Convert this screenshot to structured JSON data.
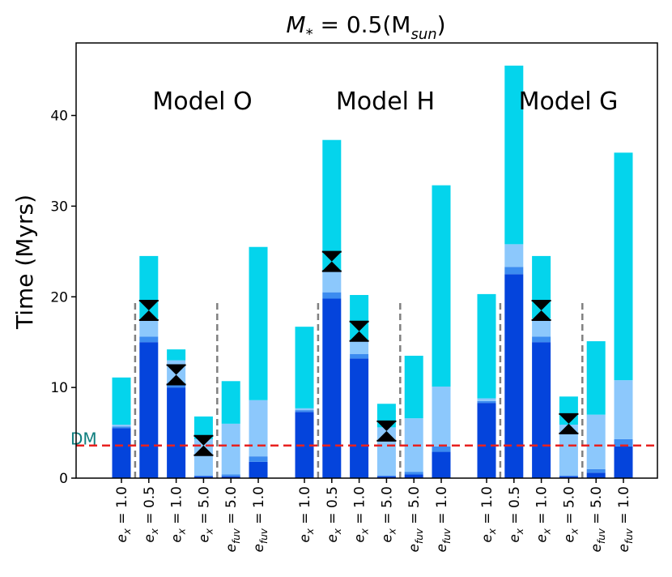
{
  "chart_data": {
    "type": "bar",
    "title_main": "M",
    "title_sub1": "*",
    "title_mid": " = 0.5(M",
    "title_sub2": "sun",
    "title_end": ")",
    "ylabel": "Time (Myrs)",
    "ylim": [
      0,
      48
    ],
    "yticks": [
      0,
      10,
      20,
      30,
      40
    ],
    "stacked": true,
    "colors": {
      "segment_1": "#0444dc",
      "segment_2": "#3c8cf0",
      "segment_3": "#8cc8fc",
      "segment_4": "#04d4ec",
      "errorbar": "#000000",
      "divider": "#808080",
      "dm_line": "#e8211f",
      "dm_label": "#0f7f7f"
    },
    "models": [
      {
        "name": "Model O",
        "bars": [
          {
            "label_base": "e",
            "label_sub": "x",
            "label_rest": " = 1.0",
            "segments": [
              5.5,
              0.2,
              0.2,
              5.2
            ],
            "marker": null
          },
          {
            "label_base": "e",
            "label_sub": "x",
            "label_rest": " = 0.5",
            "segments": [
              15.0,
              0.6,
              1.9,
              7.0
            ],
            "marker": 18.5
          },
          {
            "label_base": "e",
            "label_sub": "x",
            "label_rest": " = 1.0",
            "segments": [
              10.0,
              0.5,
              2.5,
              1.2
            ],
            "marker": 11.4
          },
          {
            "label_base": "e",
            "label_sub": "x",
            "label_rest": " = 5.0",
            "segments": [
              0.2,
              0.1,
              4.0,
              2.5
            ],
            "marker": 3.6
          },
          {
            "label_base": "e",
            "label_sub": "fuv",
            "label_rest": " = 5.0",
            "segments": [
              0.2,
              0.2,
              5.6,
              4.7
            ],
            "marker": null
          },
          {
            "label_base": "e",
            "label_sub": "fuv",
            "label_rest": " = 1.0",
            "segments": [
              1.8,
              0.6,
              6.2,
              16.9
            ],
            "marker": null
          }
        ]
      },
      {
        "name": "Model H",
        "bars": [
          {
            "label_base": "e",
            "label_sub": "x",
            "label_rest": " = 1.0",
            "segments": [
              7.3,
              0.2,
              0.2,
              9.0
            ],
            "marker": null
          },
          {
            "label_base": "e",
            "label_sub": "x",
            "label_rest": " = 0.5",
            "segments": [
              19.8,
              0.7,
              2.3,
              14.5
            ],
            "marker": 23.9
          },
          {
            "label_base": "e",
            "label_sub": "x",
            "label_rest": " = 1.0",
            "segments": [
              13.2,
              0.5,
              1.5,
              5.0
            ],
            "marker": 16.2
          },
          {
            "label_base": "e",
            "label_sub": "x",
            "label_rest": " = 5.0",
            "segments": [
              0.2,
              0.1,
              5.3,
              2.6
            ],
            "marker": 5.2
          },
          {
            "label_base": "e",
            "label_sub": "fuv",
            "label_rest": " = 5.0",
            "segments": [
              0.4,
              0.3,
              5.9,
              6.9
            ],
            "marker": null
          },
          {
            "label_base": "e",
            "label_sub": "fuv",
            "label_rest": " = 1.0",
            "segments": [
              2.9,
              0.6,
              6.6,
              22.2
            ],
            "marker": null
          }
        ]
      },
      {
        "name": "Model G",
        "bars": [
          {
            "label_base": "e",
            "label_sub": "x",
            "label_rest": " = 1.0",
            "segments": [
              8.3,
              0.2,
              0.3,
              11.5
            ],
            "marker": null
          },
          {
            "label_base": "e",
            "label_sub": "x",
            "label_rest": " = 0.5",
            "segments": [
              22.5,
              0.8,
              2.5,
              19.7
            ],
            "marker": null
          },
          {
            "label_base": "e",
            "label_sub": "x",
            "label_rest": " = 1.0",
            "segments": [
              15.0,
              0.6,
              2.0,
              6.9
            ],
            "marker": 18.5
          },
          {
            "label_base": "e",
            "label_sub": "x",
            "label_rest": " = 5.0",
            "segments": [
              0.2,
              0.1,
              5.6,
              3.1
            ],
            "marker": 6.0
          },
          {
            "label_base": "e",
            "label_sub": "fuv",
            "label_rest": " = 5.0",
            "segments": [
              0.6,
              0.4,
              6.0,
              8.1
            ],
            "marker": null
          },
          {
            "label_base": "e",
            "label_sub": "fuv",
            "label_rest": " = 1.0",
            "segments": [
              3.5,
              0.8,
              6.5,
              25.1
            ],
            "marker": null
          }
        ]
      }
    ],
    "dividers": [
      {
        "after_bar": 0,
        "top": 19.7
      },
      {
        "after_bar": 3,
        "top": 19.7
      },
      {
        "after_bar": 6,
        "top": 19.7
      },
      {
        "after_bar": 9,
        "top": 19.7
      },
      {
        "after_bar": 12,
        "top": 19.7
      },
      {
        "after_bar": 15,
        "top": 19.7
      }
    ],
    "dm_line": {
      "label": "DM",
      "value": 3.6
    }
  }
}
